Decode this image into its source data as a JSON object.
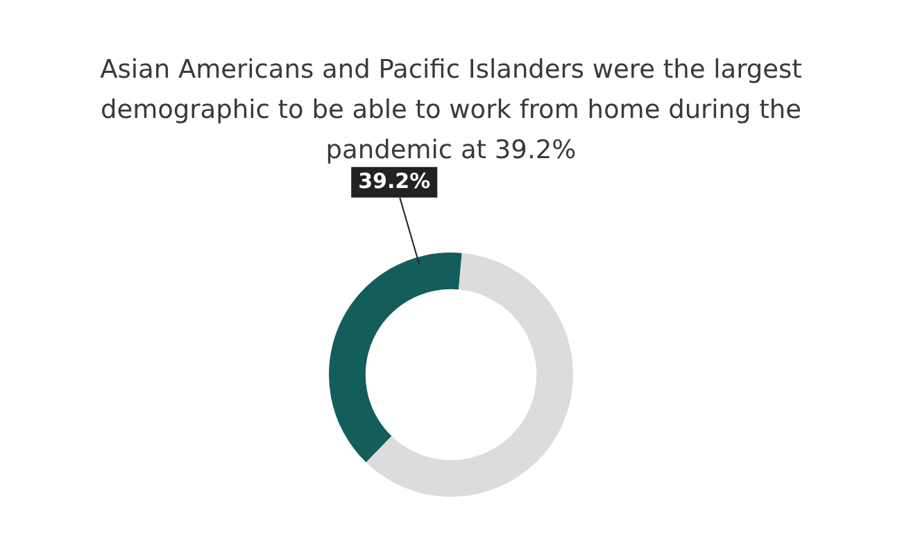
{
  "chart_data": {
    "type": "donut",
    "title": "Asian Americans and Pacific Islanders were the largest demographic to be able to work from home during the pandemic at 39.2%",
    "categories": [
      null,
      null
    ],
    "values": [
      39.2,
      60.8
    ],
    "colors": [
      "#135e5a",
      "#dcdcdc"
    ],
    "value_labels": [
      "39.2%",
      null
    ],
    "legend": false
  }
}
